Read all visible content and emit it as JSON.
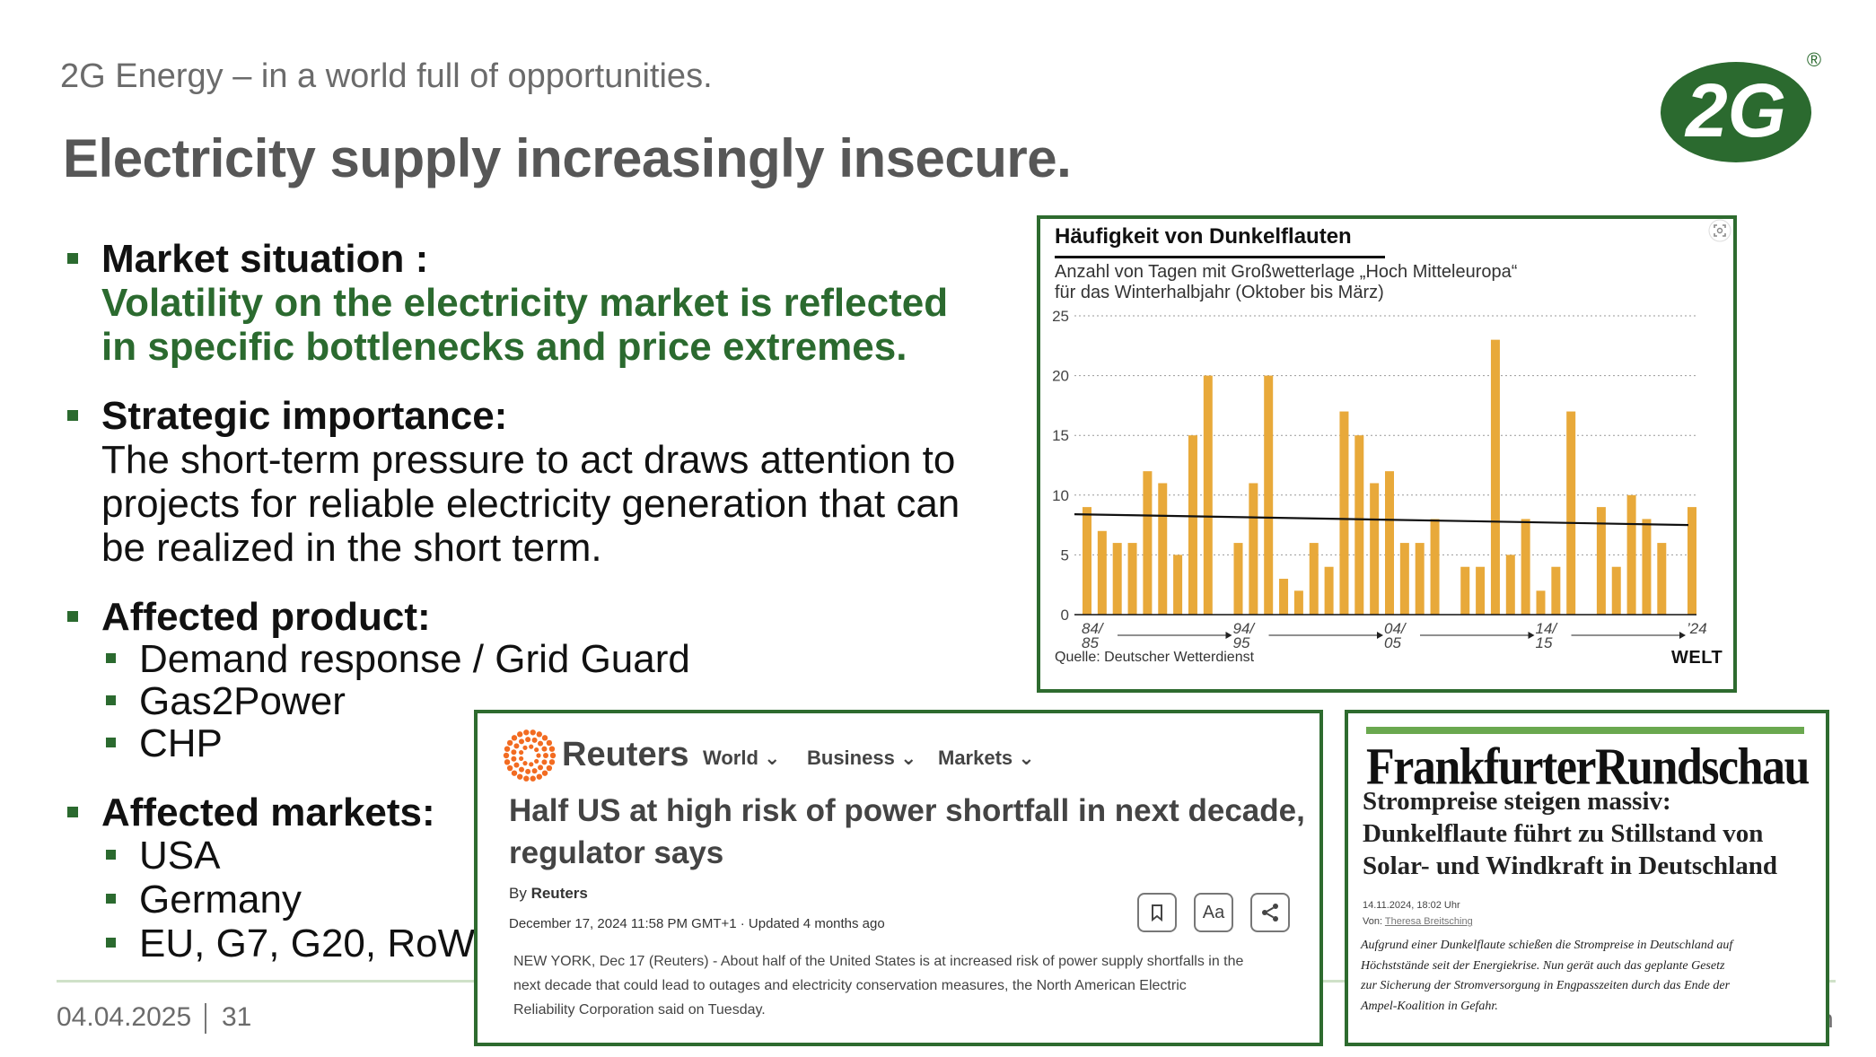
{
  "header": {
    "subtitle": "2G Energy – in a world full of opportunities.",
    "title": "Electricity supply increasingly insecure.",
    "logo_text": "2G",
    "logo_reg": "®"
  },
  "bullets": {
    "market_label": "Market situation :",
    "market_line1": "Volatility on the electricity market is reflected",
    "market_line2": "in specific bottlenecks and price extremes.",
    "strategic_label": "Strategic importance:",
    "strategic_line1": "The short-term pressure to act draws attention to",
    "strategic_line2": "projects for reliable electricity generation that can",
    "strategic_line3": "be realized in the short term.",
    "product_label": "Affected product:",
    "products": [
      "Demand response / Grid Guard",
      "Gas2Power",
      "CHP"
    ],
    "markets_label": "Affected markets:",
    "markets": [
      "USA",
      "Germany",
      "EU, G7, G20, RoW"
    ]
  },
  "chart_panel": {
    "source": "Quelle: Deutscher Wetterdienst",
    "publisher": "WELT"
  },
  "chart_data": {
    "type": "bar",
    "title": "Häufigkeit von Dunkelflauten",
    "subtitle_line1": "Anzahl von Tagen mit Großwetterlage „Hoch Mitteleuropa“",
    "subtitle_line2": "für das Winterhalbjahr (Oktober bis März)",
    "ylim": [
      0,
      25
    ],
    "yticks": [
      0,
      5,
      10,
      15,
      20,
      25
    ],
    "x_tick_labels": [
      {
        "line1": "84/",
        "line2": "85"
      },
      {
        "line1": "94/",
        "line2": "95"
      },
      {
        "line1": "04/",
        "line2": "05"
      },
      {
        "line1": "14/",
        "line2": "15"
      },
      {
        "line1": "’24",
        "line2": ""
      }
    ],
    "values": [
      9,
      7,
      6,
      6,
      12,
      11,
      5,
      15,
      20,
      0,
      6,
      11,
      20,
      3,
      2,
      6,
      4,
      17,
      15,
      11,
      12,
      6,
      6,
      8,
      0,
      4,
      4,
      23,
      5,
      8,
      2,
      4,
      17,
      0,
      9,
      4,
      10,
      8,
      6,
      0,
      9
    ],
    "trend": [
      8.4,
      7.5
    ],
    "bar_color": "#e8a93a",
    "trend_color": "#111111"
  },
  "reuters": {
    "brand": "Reuters",
    "nav": [
      "World",
      "Business",
      "Markets"
    ],
    "headline_line1": "Half US at high risk of power shortfall in next decade,",
    "headline_line2": "regulator says",
    "byline_prefix": "By",
    "byline_author": "Reuters",
    "date": "December 17, 2024 11:58 PM GMT+1 · Updated 4 months ago",
    "bookmark_icon": "bookmark-icon",
    "font_button": "Aa",
    "share_icon": "share-icon",
    "body_line1": "NEW YORK, Dec 17 (Reuters) - About half of the United States is at increased risk of power supply shortfalls in the",
    "body_line2": "next decade that could lead to outages and electricity conservation measures, the North American Electric",
    "body_line3": "Reliability Corporation said on Tuesday."
  },
  "fr": {
    "brand": "FrankfurterRundschau",
    "headline_line1": "Strompreise steigen massiv:",
    "headline_line2": "Dunkelflaute führt zu Stillstand von",
    "headline_line3": "Solar- und Windkraft in Deutschland",
    "date": "14.11.2024, 18:02 Uhr",
    "by_prefix": "Von:",
    "author": "Theresa Breitsching",
    "body_line1": "Aufgrund einer Dunkelflaute schießen die Strompreise in Deutschland auf",
    "body_line2": "Höchststände seit der Energiekrise. Nun gerät auch das geplante Gesetz",
    "body_line3": "zur Sicherung der Stromversorgung in Engpasszeiten durch das Ende der",
    "body_line4": "Ampel-Koalition in Gefahr."
  },
  "footer": {
    "date": "04.04.2025",
    "page": "31",
    "edge_char": "n"
  }
}
